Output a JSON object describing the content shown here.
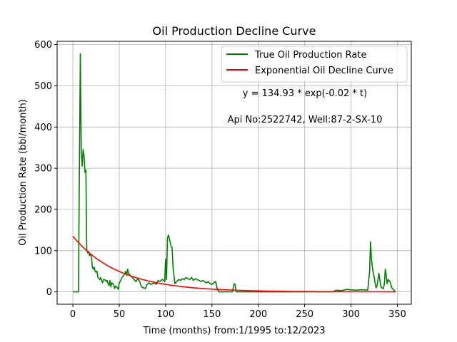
{
  "chart_data": {
    "type": "line",
    "title": "Oil Production Decline Curve",
    "xlabel": "Time (months) from:1/1995 to:12/2023",
    "ylabel": "Oil Production Rate (bbl/month)",
    "xlim": [
      -17,
      365
    ],
    "ylim": [
      -30,
      608
    ],
    "xticks": [
      0,
      50,
      100,
      150,
      200,
      250,
      300,
      350
    ],
    "yticks": [
      0,
      100,
      200,
      300,
      400,
      500,
      600
    ],
    "grid": true,
    "legend_position": "top-right",
    "annotations": [
      "y = 134.93 * exp(-0.02 * t)",
      "Api No:2522742, Well:87-2-SX-10"
    ],
    "series": [
      {
        "name": "True Oil Production Rate",
        "color": "#008000",
        "points": [
          [
            0,
            0
          ],
          [
            6,
            0
          ],
          [
            7,
            300
          ],
          [
            8,
            578
          ],
          [
            9,
            340
          ],
          [
            10,
            305
          ],
          [
            11,
            345
          ],
          [
            12,
            330
          ],
          [
            13,
            290
          ],
          [
            14,
            295
          ],
          [
            15,
            100
          ],
          [
            16,
            95
          ],
          [
            17,
            98
          ],
          [
            18,
            88
          ],
          [
            19,
            92
          ],
          [
            20,
            85
          ],
          [
            21,
            60
          ],
          [
            22,
            55
          ],
          [
            23,
            60
          ],
          [
            24,
            50
          ],
          [
            25,
            48
          ],
          [
            26,
            50
          ],
          [
            27,
            35
          ],
          [
            28,
            32
          ],
          [
            29,
            30
          ],
          [
            30,
            35
          ],
          [
            31,
            28
          ],
          [
            32,
            22
          ],
          [
            33,
            30
          ],
          [
            34,
            30
          ],
          [
            35,
            28
          ],
          [
            36,
            25
          ],
          [
            37,
            28
          ],
          [
            38,
            20
          ],
          [
            39,
            15
          ],
          [
            40,
            28
          ],
          [
            41,
            12
          ],
          [
            42,
            22
          ],
          [
            43,
            20
          ],
          [
            44,
            18
          ],
          [
            45,
            8
          ],
          [
            46,
            14
          ],
          [
            47,
            12
          ],
          [
            48,
            10
          ],
          [
            49,
            6
          ],
          [
            50,
            22
          ],
          [
            51,
            25
          ],
          [
            52,
            30
          ],
          [
            53,
            35
          ],
          [
            54,
            38
          ],
          [
            55,
            40
          ],
          [
            56,
            45
          ],
          [
            57,
            50
          ],
          [
            58,
            40
          ],
          [
            59,
            55
          ],
          [
            60,
            45
          ],
          [
            62,
            40
          ],
          [
            64,
            35
          ],
          [
            66,
            30
          ],
          [
            68,
            25
          ],
          [
            70,
            32
          ],
          [
            72,
            25
          ],
          [
            74,
            12
          ],
          [
            76,
            10
          ],
          [
            78,
            8
          ],
          [
            80,
            18
          ],
          [
            82,
            22
          ],
          [
            84,
            18
          ],
          [
            86,
            20
          ],
          [
            88,
            22
          ],
          [
            90,
            18
          ],
          [
            92,
            28
          ],
          [
            94,
            25
          ],
          [
            96,
            30
          ],
          [
            98,
            28
          ],
          [
            99,
            25
          ],
          [
            100,
            80
          ],
          [
            101,
            30
          ],
          [
            102,
            130
          ],
          [
            103,
            138
          ],
          [
            104,
            130
          ],
          [
            105,
            120
          ],
          [
            106,
            110
          ],
          [
            107,
            108
          ],
          [
            108,
            60
          ],
          [
            110,
            20
          ],
          [
            112,
            25
          ],
          [
            114,
            30
          ],
          [
            116,
            28
          ],
          [
            118,
            32
          ],
          [
            120,
            30
          ],
          [
            122,
            35
          ],
          [
            124,
            32
          ],
          [
            126,
            30
          ],
          [
            128,
            35
          ],
          [
            130,
            28
          ],
          [
            132,
            32
          ],
          [
            134,
            30
          ],
          [
            136,
            28
          ],
          [
            138,
            25
          ],
          [
            140,
            28
          ],
          [
            142,
            25
          ],
          [
            144,
            22
          ],
          [
            146,
            25
          ],
          [
            148,
            20
          ],
          [
            150,
            18
          ],
          [
            152,
            22
          ],
          [
            154,
            25
          ],
          [
            156,
            5
          ],
          [
            158,
            0
          ],
          [
            160,
            0
          ],
          [
            165,
            0
          ],
          [
            172,
            0
          ],
          [
            174,
            20
          ],
          [
            175,
            18
          ],
          [
            176,
            0
          ],
          [
            180,
            0
          ],
          [
            190,
            0
          ],
          [
            200,
            0
          ],
          [
            220,
            0
          ],
          [
            240,
            0
          ],
          [
            260,
            0
          ],
          [
            280,
            0
          ],
          [
            284,
            4
          ],
          [
            290,
            3
          ],
          [
            295,
            6
          ],
          [
            300,
            5
          ],
          [
            305,
            4
          ],
          [
            310,
            5
          ],
          [
            315,
            5
          ],
          [
            318,
            4
          ],
          [
            320,
            50
          ],
          [
            321,
            122
          ],
          [
            322,
            80
          ],
          [
            323,
            60
          ],
          [
            324,
            45
          ],
          [
            325,
            35
          ],
          [
            326,
            20
          ],
          [
            327,
            10
          ],
          [
            328,
            15
          ],
          [
            330,
            45
          ],
          [
            331,
            30
          ],
          [
            332,
            15
          ],
          [
            333,
            10
          ],
          [
            335,
            8
          ],
          [
            336,
            20
          ],
          [
            337,
            55
          ],
          [
            338,
            40
          ],
          [
            339,
            20
          ],
          [
            340,
            30
          ],
          [
            342,
            25
          ],
          [
            344,
            10
          ],
          [
            346,
            5
          ],
          [
            348,
            0
          ]
        ]
      },
      {
        "name": "Exponential Oil Decline Curve",
        "color": "#ff0000",
        "formula": {
          "a": 134.93,
          "b": -0.02
        },
        "x_range": [
          0,
          348
        ]
      }
    ]
  }
}
